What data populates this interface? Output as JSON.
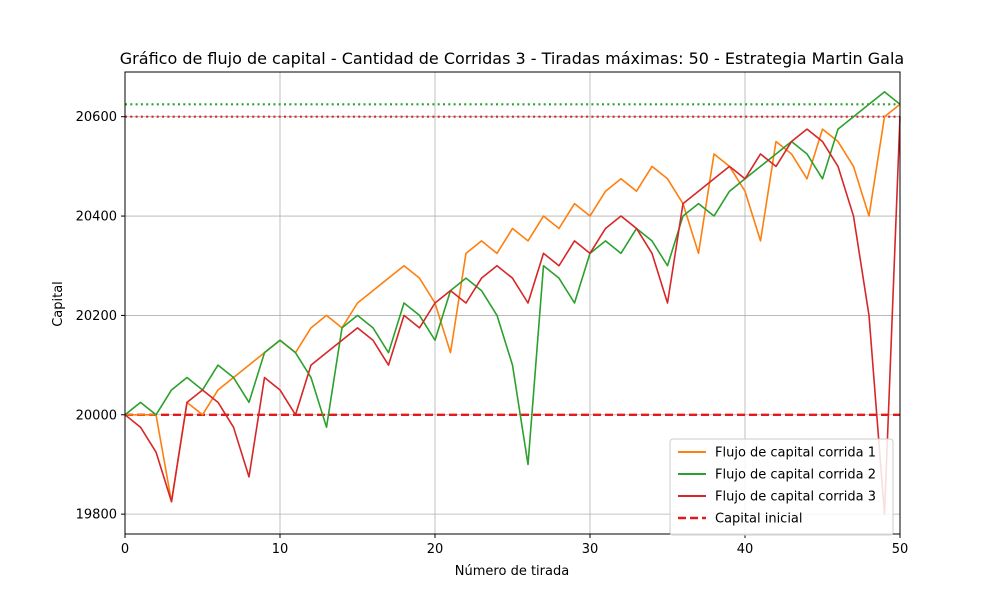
{
  "chart_data": {
    "type": "line",
    "title": "Gráfico de flujo de capital - Cantidad de Corridas 3 - Tiradas máximas: 50 - Estrategia Martin Gala",
    "xlabel": "Número de tirada",
    "ylabel": "Capital",
    "xlim": [
      0,
      50
    ],
    "ylim": [
      19760,
      20690
    ],
    "xticks": [
      0,
      10,
      20,
      30,
      40,
      50
    ],
    "yticks": [
      19800,
      20000,
      20200,
      20400,
      20600
    ],
    "grid": true,
    "legend_position": "bottom-right",
    "x": [
      0,
      1,
      2,
      3,
      4,
      5,
      6,
      7,
      8,
      9,
      10,
      11,
      12,
      13,
      14,
      15,
      16,
      17,
      18,
      19,
      20,
      21,
      22,
      23,
      24,
      25,
      26,
      27,
      28,
      29,
      30,
      31,
      32,
      33,
      34,
      35,
      36,
      37,
      38,
      39,
      40,
      41,
      42,
      43,
      44,
      45,
      46,
      47,
      48,
      49,
      50
    ],
    "series": [
      {
        "name": "Flujo de capital corrida 1",
        "color": "#ff7f0e",
        "values": [
          20000,
          20000,
          20000,
          19825,
          20025,
          20000,
          20050,
          20075,
          20100,
          20125,
          20150,
          20125,
          20175,
          20200,
          20175,
          20225,
          20250,
          20275,
          20300,
          20275,
          20225,
          20125,
          20325,
          20350,
          20325,
          20375,
          20350,
          20400,
          20375,
          20425,
          20400,
          20450,
          20475,
          20450,
          20500,
          20475,
          20425,
          20325,
          20525,
          20500,
          20450,
          20350,
          20550,
          20525,
          20475,
          20575,
          20550,
          20500,
          20400,
          20600,
          20625
        ]
      },
      {
        "name": "Flujo de capital corrida 2",
        "color": "#2ca02c",
        "values": [
          20000,
          20025,
          20000,
          20050,
          20075,
          20050,
          20100,
          20075,
          20025,
          20125,
          20150,
          20125,
          20075,
          19975,
          20175,
          20200,
          20175,
          20125,
          20225,
          20200,
          20150,
          20250,
          20275,
          20250,
          20200,
          20100,
          19900,
          20300,
          20275,
          20225,
          20325,
          20350,
          20325,
          20375,
          20350,
          20300,
          20400,
          20425,
          20400,
          20450,
          20475,
          20500,
          20525,
          20550,
          20525,
          20475,
          20575,
          20600,
          20625,
          20650,
          20625
        ]
      },
      {
        "name": "Flujo de capital corrida 3",
        "color": "#d62728",
        "values": [
          20000,
          19975,
          19925,
          19825,
          20025,
          20050,
          20025,
          19975,
          19875,
          20075,
          20050,
          20000,
          20100,
          20125,
          20150,
          20175,
          20150,
          20100,
          20200,
          20175,
          20225,
          20250,
          20225,
          20275,
          20300,
          20275,
          20225,
          20325,
          20300,
          20350,
          20325,
          20375,
          20400,
          20375,
          20325,
          20225,
          20425,
          20450,
          20475,
          20500,
          20475,
          20525,
          20500,
          20550,
          20575,
          20550,
          20500,
          20400,
          20200,
          19800,
          20600
        ]
      }
    ],
    "reference_lines": [
      {
        "name": "Capital inicial",
        "y": 20000,
        "color": "#e31a1c",
        "style": "dashed",
        "in_legend": true
      },
      {
        "y": 20625,
        "color": "#2ca02c",
        "style": "dotted",
        "in_legend": false
      },
      {
        "y": 20600,
        "color": "#d62728",
        "style": "dotted",
        "in_legend": false
      }
    ]
  }
}
